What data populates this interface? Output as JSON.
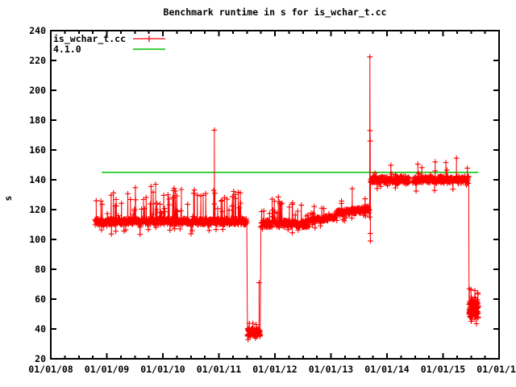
{
  "window": {
    "background": "#ffffff",
    "foreground": "#000000"
  },
  "title": "Benchmark runtime in s for is_wchar_t.cc",
  "axes": {
    "ylabel": "s"
  },
  "legend": {
    "position": "top-left",
    "items": [
      {
        "label": "is_wchar_t.cc",
        "color": "#ff0000",
        "marker": "line-with-plus"
      },
      {
        "label": "4.1.0",
        "color": "#00c000",
        "marker": "line"
      }
    ]
  },
  "chart_data": {
    "type": "line",
    "title": "Benchmark runtime in s for is_wchar_t.cc",
    "xlabel": "",
    "ylabel": "s",
    "ylim": [
      20,
      240
    ],
    "y_tick_step": 20,
    "xlim_years": [
      2008,
      2016
    ],
    "x_tick_labels": [
      "01/01/08",
      "01/01/09",
      "01/01/10",
      "01/01/11",
      "01/01/12",
      "01/01/13",
      "01/01/14",
      "01/01/15",
      "01/01/1"
    ],
    "x_minor_ticks_per_interval": 3,
    "grid": false,
    "legend_position": "top-left",
    "series": [
      {
        "name": "is_wchar_t.cc",
        "color": "#ff0000",
        "style": "linespoints-plus",
        "seed": 20151007,
        "segments": [
          {
            "t0": 2008.79,
            "t1": 2011.5,
            "base": 112.0,
            "slope": 0,
            "amp": 2.2,
            "up_prob": 0.09,
            "up_min": 4,
            "up_max": 22,
            "down_prob": 0.03,
            "down_min": 3,
            "down_max": 7,
            "dt": 0.004
          },
          {
            "t0": 2011.51,
            "t1": 2011.74,
            "base": 37.5,
            "slope": 0,
            "amp": 2.4,
            "up_prob": 0.1,
            "up_min": 2,
            "up_max": 5,
            "down_prob": 0.02,
            "down_min": 1,
            "down_max": 3,
            "dt": 0.0022
          },
          {
            "t0": 2011.75,
            "t1": 2012.58,
            "base": 110.5,
            "slope": 0,
            "amp": 2.4,
            "up_prob": 0.07,
            "up_min": 4,
            "up_max": 16,
            "down_prob": 0.05,
            "down_min": 3,
            "down_max": 6,
            "dt": 0.004
          },
          {
            "t0": 2012.585,
            "t1": 2013.08,
            "base": 112.5,
            "slope": 5,
            "amp": 1.8,
            "up_prob": 0.05,
            "up_min": 3,
            "up_max": 8,
            "down_prob": 0.03,
            "down_min": 3,
            "down_max": 5,
            "dt": 0.004
          },
          {
            "t0": 2013.085,
            "t1": 2013.69,
            "base": 117.5,
            "slope": 5,
            "amp": 2.0,
            "up_prob": 0.06,
            "up_min": 3,
            "up_max": 10,
            "down_prob": 0.03,
            "down_min": 3,
            "down_max": 6,
            "dt": 0.004
          },
          {
            "t0": 2013.705,
            "t1": 2015.46,
            "base": 140.0,
            "slope": 0,
            "amp": 2.4,
            "up_prob": 0.05,
            "up_min": 3,
            "up_max": 9,
            "down_prob": 0.03,
            "down_min": 3,
            "down_max": 6,
            "dt": 0.004
          },
          {
            "t0": 2015.465,
            "t1": 2015.63,
            "base": 54.0,
            "slope": 0,
            "amp": 4.5,
            "up_prob": 0.12,
            "up_min": 3,
            "up_max": 10,
            "down_prob": 0.06,
            "down_min": 3,
            "down_max": 7,
            "dt": 0.0012
          }
        ],
        "outliers": [
          [
            2008.81,
            126
          ],
          [
            2009.16,
            105.5
          ],
          [
            2009.79,
            135.5
          ],
          [
            2009.87,
            137
          ],
          [
            2010.09,
            130
          ],
          [
            2010.33,
            133.5
          ],
          [
            2010.55,
            131
          ],
          [
            2010.72,
            129.5
          ],
          [
            2010.92,
            173.3
          ],
          [
            2010.93,
            131
          ],
          [
            2011.1,
            128
          ],
          [
            2011.3,
            127.5
          ],
          [
            2011.718,
            71
          ],
          [
            2011.95,
            127
          ],
          [
            2012.06,
            128.5
          ],
          [
            2012.31,
            104.5
          ],
          [
            2013.38,
            134
          ],
          [
            2013.695,
            222.4
          ],
          [
            2013.698,
            173
          ],
          [
            2013.7,
            166
          ],
          [
            2013.7025,
            104
          ],
          [
            2013.7035,
            99
          ],
          [
            2014.52,
            132.5
          ],
          [
            2014.55,
            150.5
          ],
          [
            2014.86,
            152
          ],
          [
            2015.05,
            151.5
          ],
          [
            2015.24,
            154.5
          ],
          [
            2015.47,
            67
          ]
        ],
        "gaps": [
          [
            2014.405,
            2014.46
          ]
        ]
      },
      {
        "name": "4.1.0",
        "color": "#00c000",
        "style": "hline",
        "value": 145,
        "t_start": 2008.91,
        "t_end": 2015.63
      }
    ]
  }
}
